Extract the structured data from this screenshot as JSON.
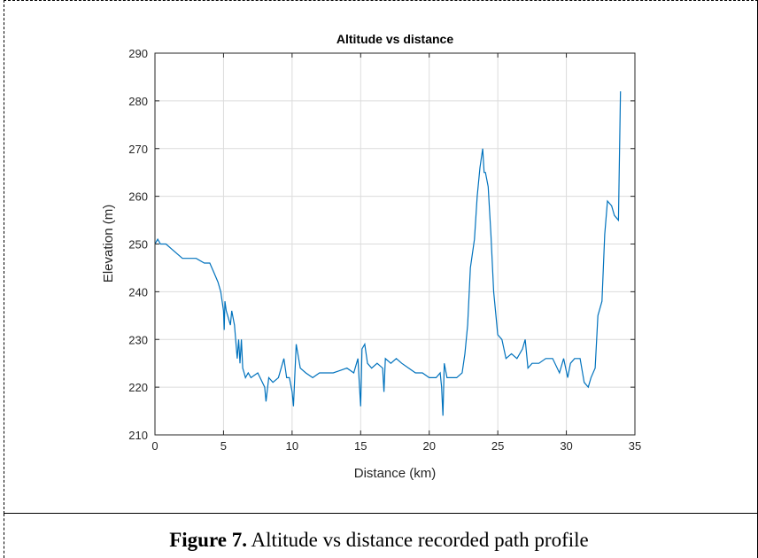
{
  "chart_data": {
    "type": "line",
    "title": "Altitude vs distance",
    "xlabel": "Distance (km)",
    "ylabel": "Elevation (m)",
    "xlim": [
      0,
      35
    ],
    "ylim": [
      210,
      290
    ],
    "xticks": [
      0,
      5,
      10,
      15,
      20,
      25,
      30,
      35
    ],
    "yticks": [
      210,
      220,
      230,
      240,
      250,
      260,
      270,
      280,
      290
    ],
    "grid": true,
    "color": "#0072BD",
    "series": [
      {
        "x": [
          0,
          0.2,
          0.4,
          0.8,
          1.2,
          1.6,
          2.0,
          2.4,
          3.0,
          3.6,
          4.0,
          4.3,
          4.6,
          4.8,
          5.0,
          5.05,
          5.1,
          5.2,
          5.3,
          5.5,
          5.6,
          5.8,
          6.0,
          6.1,
          6.2,
          6.3,
          6.4,
          6.5,
          6.6,
          6.8,
          7.0,
          7.5,
          8.0,
          8.1,
          8.3,
          8.6,
          9.0,
          9.4,
          9.6,
          9.8,
          10.0,
          10.1,
          10.3,
          10.6,
          11.0,
          11.5,
          12.0,
          13.0,
          14.0,
          14.5,
          14.8,
          14.9,
          15.0,
          15.1,
          15.3,
          15.5,
          15.8,
          16.2,
          16.6,
          16.7,
          16.8,
          17.2,
          17.6,
          18.0,
          18.5,
          19.0,
          19.5,
          20.0,
          20.5,
          20.8,
          20.9,
          21.0,
          21.1,
          21.3,
          21.6,
          22.0,
          22.4,
          22.6,
          22.8,
          23.0,
          23.3,
          23.5,
          23.7,
          23.9,
          24.0,
          24.1,
          24.3,
          24.5,
          24.7,
          25.0,
          25.3,
          25.6,
          26.0,
          26.4,
          26.8,
          27.0,
          27.2,
          27.5,
          28.0,
          28.5,
          29.0,
          29.5,
          29.8,
          30.1,
          30.3,
          30.6,
          31.0,
          31.3,
          31.6,
          31.8,
          32.1,
          32.3,
          32.6,
          32.8,
          33.0,
          33.3,
          33.5,
          33.8,
          33.95
        ],
        "y": [
          250,
          251,
          250,
          250,
          249,
          248,
          247,
          247,
          247,
          246,
          246,
          244,
          242,
          240,
          236,
          232,
          238,
          236,
          235,
          233,
          236,
          233,
          226,
          230,
          225,
          230,
          224,
          223,
          222,
          223,
          222,
          223,
          220,
          217,
          222,
          221,
          222,
          226,
          222,
          222,
          219,
          216,
          229,
          224,
          223,
          222,
          223,
          223,
          224,
          223,
          226,
          221,
          216,
          228,
          229,
          225,
          224,
          225,
          224,
          219,
          226,
          225,
          226,
          225,
          224,
          223,
          223,
          222,
          222,
          223,
          220,
          214,
          225,
          222,
          222,
          222,
          223,
          227,
          233,
          245,
          251,
          260,
          266,
          270,
          265,
          265,
          262,
          252,
          240,
          231,
          230,
          226,
          227,
          226,
          228,
          230,
          224,
          225,
          225,
          226,
          226,
          223,
          226,
          222,
          225,
          226,
          226,
          221,
          220,
          222,
          224,
          235,
          238,
          252,
          259,
          258,
          256,
          255,
          282
        ]
      }
    ]
  },
  "caption": {
    "label": "Figure 7.",
    "text": "Altitude vs distance recorded path profile"
  }
}
